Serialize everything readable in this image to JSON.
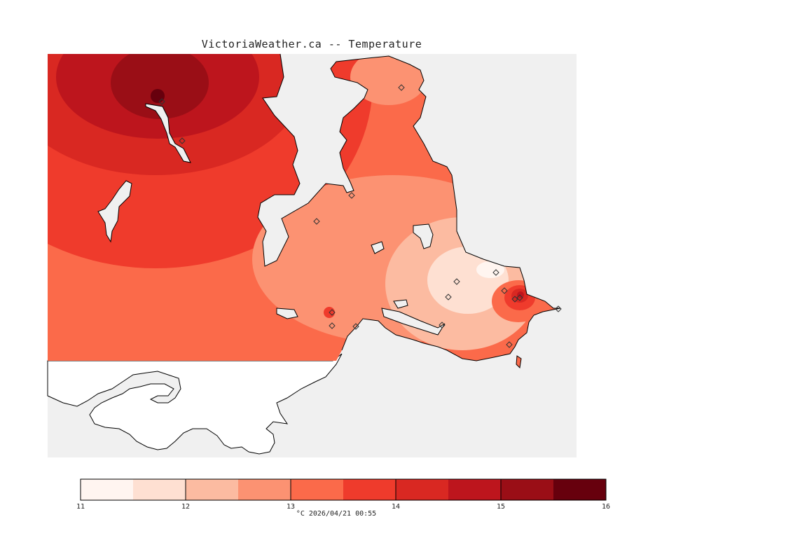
{
  "title": "VictoriaWeather.ca -- Temperature",
  "legend": {
    "ticks": [
      "11",
      "12",
      "13",
      "14",
      "15",
      "16"
    ],
    "caption": "°C  2026/04/21 00:55",
    "bins": [
      {
        "color": "#fff5f0"
      },
      {
        "color": "#fee0d2"
      },
      {
        "color": "#fcbba1"
      },
      {
        "color": "#fc9272"
      },
      {
        "color": "#fb6a4a"
      },
      {
        "color": "#ef3b2c"
      },
      {
        "color": "#d92822"
      },
      {
        "color": "#bd151d"
      },
      {
        "color": "#9a0e16"
      },
      {
        "color": "#67000d"
      }
    ]
  },
  "colors": {
    "water": "#f0f0f0",
    "outside_domain": "#ffffff",
    "coastline": "#000000"
  },
  "stations_marker": "diamond-station-icon"
}
